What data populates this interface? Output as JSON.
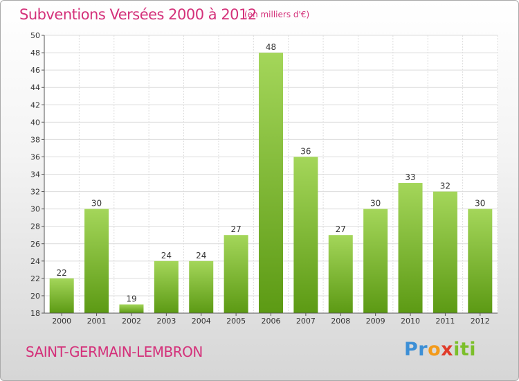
{
  "header": {
    "title": "Subventions Versées 2000 à 2012",
    "subtitle": "(en milliers d'€)"
  },
  "footer": {
    "commune": "SAINT-GERMAIN-LEMBRON",
    "logo": {
      "part1": "Pr",
      "part2": "o",
      "part3": "x",
      "part4": "iti"
    }
  },
  "colors": {
    "title": "#d4317a",
    "bar_light": "#a4d65a",
    "bar_dark": "#5c9a14"
  },
  "chart_data": {
    "type": "bar",
    "title": "Subventions Versées 2000 à 2012",
    "subtitle": "(en milliers d'€)",
    "categories": [
      "2000",
      "2001",
      "2002",
      "2003",
      "2004",
      "2005",
      "2006",
      "2007",
      "2008",
      "2009",
      "2010",
      "2011",
      "2012"
    ],
    "values": [
      22,
      30,
      19,
      24,
      24,
      27,
      48,
      36,
      27,
      30,
      33,
      32,
      30
    ],
    "ylim": [
      18,
      50
    ],
    "yticks": [
      18,
      20,
      22,
      24,
      26,
      28,
      30,
      32,
      34,
      36,
      38,
      40,
      42,
      44,
      46,
      48,
      50
    ],
    "grid": true,
    "legend": "none"
  }
}
